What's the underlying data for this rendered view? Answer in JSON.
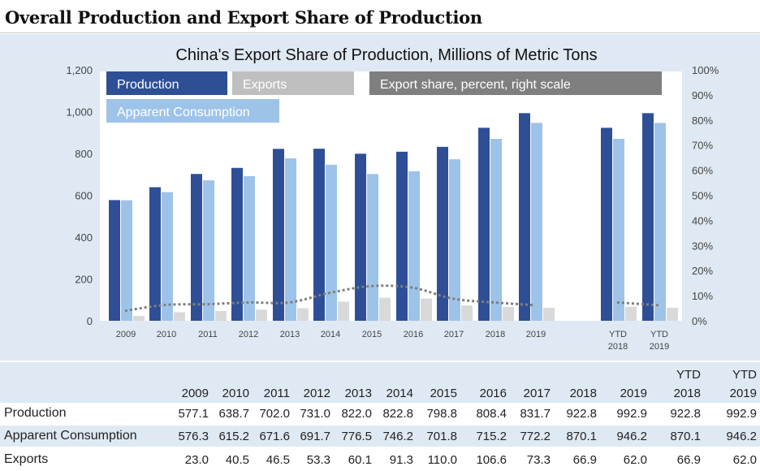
{
  "page_title": "Overall Production and Export Share of Production",
  "chart_data": {
    "type": "bar",
    "title": "China's Export Share of Production, Millions of Metric Tons",
    "categories": [
      "2009",
      "2010",
      "2011",
      "2012",
      "2013",
      "2014",
      "2015",
      "2016",
      "2017",
      "2018",
      "2019",
      "YTD 2018",
      "YTD 2019"
    ],
    "category_label_lines": [
      [
        "2009"
      ],
      [
        "2010"
      ],
      [
        "2011"
      ],
      [
        "2012"
      ],
      [
        "2013"
      ],
      [
        "2014"
      ],
      [
        "2015"
      ],
      [
        "2016"
      ],
      [
        "2017"
      ],
      [
        "2018"
      ],
      [
        "2019"
      ],
      [
        "YTD",
        "2018"
      ],
      [
        "YTD",
        "2019"
      ]
    ],
    "series": [
      {
        "name": "Production",
        "color": "#2e4f96",
        "values": [
          577.1,
          638.7,
          702.0,
          731.0,
          822.0,
          822.8,
          798.8,
          808.4,
          831.7,
          922.8,
          992.9,
          922.8,
          992.9
        ]
      },
      {
        "name": "Apparent Consumption",
        "color": "#9ec3e8",
        "values": [
          576.3,
          615.2,
          671.6,
          691.7,
          776.5,
          746.2,
          701.8,
          715.2,
          772.2,
          870.1,
          946.2,
          870.1,
          946.2
        ]
      },
      {
        "name": "Exports",
        "color": "#d9d9d9",
        "values": [
          23.0,
          40.5,
          46.5,
          53.3,
          60.1,
          91.3,
          110.0,
          106.6,
          73.3,
          66.9,
          62.0,
          66.9,
          62.0
        ]
      }
    ],
    "line_series": {
      "name": "Export share, percent, right scale",
      "color": "#7f7f7f",
      "axis": "right",
      "values": [
        4.0,
        6.3,
        6.6,
        7.3,
        7.3,
        11.1,
        13.8,
        13.2,
        8.8,
        7.3,
        6.2,
        7.3,
        6.2
      ]
    },
    "legend": [
      {
        "label": "Production",
        "color": "#2e4f96"
      },
      {
        "label": "Exports",
        "color": "#bfbfbf"
      },
      {
        "label": "Export share, percent, right scale",
        "color": "#7f7f7f"
      },
      {
        "label": "Apparent Consumption",
        "color": "#9ec3e8"
      }
    ],
    "legend_placement": "top-left",
    "y_left": {
      "ylim": [
        0,
        1200
      ],
      "ticks": [
        0,
        200,
        400,
        600,
        800,
        1000,
        1200
      ],
      "tick_labels": [
        "0",
        "200",
        "400",
        "600",
        "800",
        "1,000",
        "1,200"
      ]
    },
    "y_right": {
      "ylim": [
        0,
        100
      ],
      "ticks": [
        0,
        10,
        20,
        30,
        40,
        50,
        60,
        70,
        80,
        90,
        100
      ],
      "tick_labels": [
        "0%",
        "10%",
        "20%",
        "30%",
        "40%",
        "50%",
        "60%",
        "70%",
        "80%",
        "90%",
        "100%"
      ]
    },
    "grid": false
  },
  "table": {
    "header_top": [
      "",
      "",
      "",
      "",
      "",
      "",
      "",
      "",
      "",
      "",
      "",
      "YTD",
      "YTD"
    ],
    "header": [
      "2009",
      "2010",
      "2011",
      "2012",
      "2013",
      "2014",
      "2015",
      "2016",
      "2017",
      "2018",
      "2019",
      "2018",
      "2019"
    ],
    "rows": [
      {
        "label": "Production",
        "cells": [
          "577.1",
          "638.7",
          "702.0",
          "731.0",
          "822.0",
          "822.8",
          "798.8",
          "808.4",
          "831.7",
          "922.8",
          "992.9",
          "922.8",
          "992.9"
        ]
      },
      {
        "label": "Apparent Consumption",
        "cells": [
          "576.3",
          "615.2",
          "671.6",
          "691.7",
          "776.5",
          "746.2",
          "701.8",
          "715.2",
          "772.2",
          "870.1",
          "946.2",
          "870.1",
          "946.2"
        ]
      },
      {
        "label": "Exports",
        "cells": [
          "23.0",
          "40.5",
          "46.5",
          "53.3",
          "60.1",
          "91.3",
          "110.0",
          "106.6",
          "73.3",
          "66.9",
          "62.0",
          "66.9",
          "62.0"
        ]
      }
    ]
  }
}
